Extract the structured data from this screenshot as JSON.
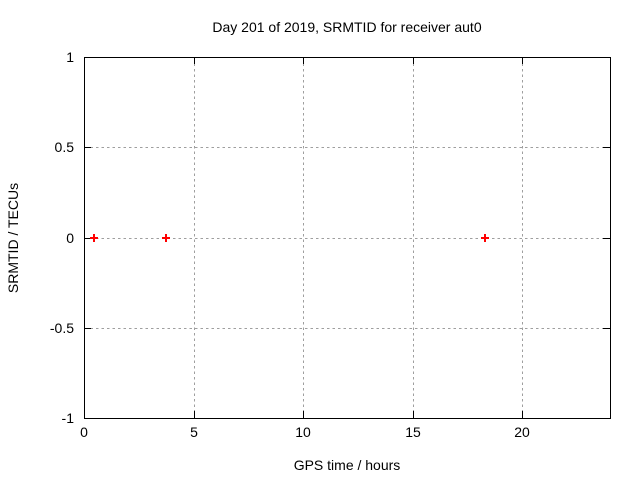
{
  "chart_data": {
    "type": "scatter",
    "title": "Day 201 of 2019, SRMTID for receiver aut0",
    "xlabel": "GPS time / hours",
    "ylabel": "SRMTID / TECUs",
    "xlim": [
      0,
      24
    ],
    "ylim": [
      -1,
      1
    ],
    "xticks": [
      0,
      5,
      10,
      15,
      20
    ],
    "xtick_labels": [
      "0",
      "5",
      "10",
      "15",
      "20"
    ],
    "yticks": [
      -1,
      -0.5,
      0,
      0.5,
      1
    ],
    "ytick_labels": [
      "-1",
      "-0.5",
      "0",
      "0.5",
      "1"
    ],
    "grid": true,
    "grid_style": "dotted",
    "legend_position": "none",
    "series": [
      {
        "name": "SRMTID",
        "marker": "plus",
        "color": "#ff0000",
        "points": [
          [
            0.45,
            0.0
          ],
          [
            3.75,
            0.0
          ],
          [
            18.3,
            0.0
          ]
        ]
      }
    ]
  },
  "colors": {
    "background": "#ffffff",
    "axis": "#000000",
    "grid": "#9e9e9e",
    "text": "#000000",
    "marker": "#ff0000"
  }
}
